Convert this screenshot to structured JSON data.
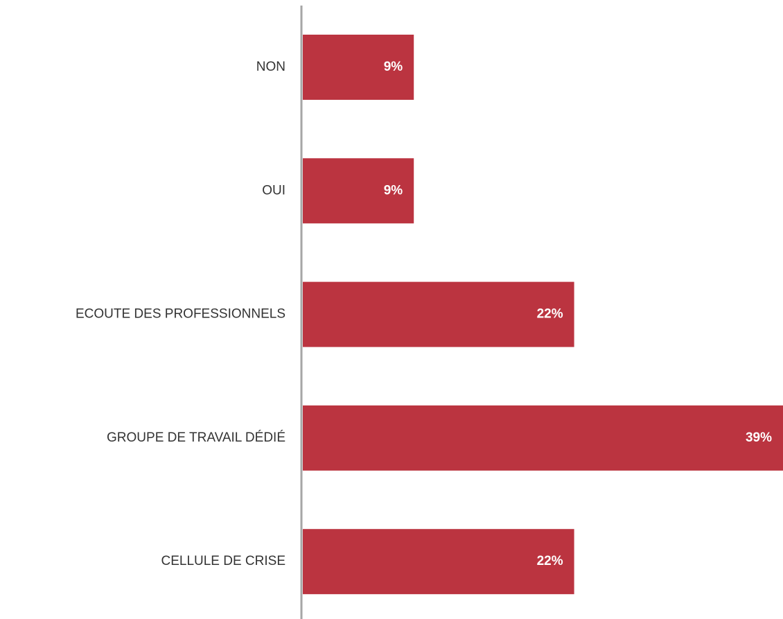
{
  "chart_data": {
    "type": "bar",
    "orientation": "horizontal",
    "categories": [
      "NON",
      "OUI",
      "ECOUTE DES PROFESSIONNELS",
      "GROUPE DE TRAVAIL DÉDIÉ",
      "CELLULE DE CRISE"
    ],
    "values": [
      9,
      9,
      22,
      39,
      22
    ],
    "value_labels": [
      "9%",
      "9%",
      "22%",
      "39%",
      "22%"
    ],
    "color": "#bb3440"
  }
}
